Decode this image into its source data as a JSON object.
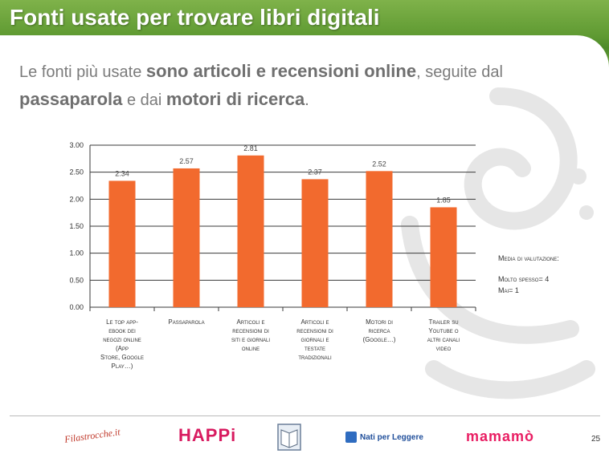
{
  "header": {
    "title": "Fonti usate per trovare libri digitali"
  },
  "subtitle": {
    "part1": "Le fonti più usate ",
    "bold1": "sono articoli e recensioni online",
    "part2": ", seguite dal ",
    "bold2": "passaparola",
    "part3": " e dai ",
    "bold3": "motori di ricerca",
    "part4": "."
  },
  "chart_data": {
    "type": "bar",
    "categories": [
      "Le top app-ebook dei negozi online (App Store, Google Play…)",
      "Passaparola",
      "Articoli e recensioni di siti e giornali online",
      "Articoli e recensioni di giornali e testate tradizionali",
      "Motori di ricerca (Google…)",
      "Trailer su Youtube o altri canali video"
    ],
    "values": [
      2.34,
      2.57,
      2.81,
      2.37,
      2.52,
      1.85
    ],
    "value_labels": [
      "2.34",
      "2.57",
      "2.81",
      "2.37",
      "2.52",
      "1.85"
    ],
    "ylim": [
      0,
      3
    ],
    "yticks": [
      "0.00",
      "0.50",
      "1.00",
      "1.50",
      "2.00",
      "2.50",
      "3.00"
    ],
    "ytick_values": [
      0,
      0.5,
      1,
      1.5,
      2,
      2.5,
      3
    ],
    "bar_color": "#f26a2e",
    "grid": true
  },
  "category_labels": [
    [
      "Le top app-",
      "ebook dei",
      "negozi online",
      "(App",
      "Store, Google",
      "Play…)"
    ],
    [
      "Passaparola"
    ],
    [
      "Articoli e",
      "recensioni di",
      "siti e giornali",
      "online"
    ],
    [
      "Articoli e",
      "recensioni di",
      "giornali e",
      "testate",
      "tradizionali"
    ],
    [
      "Motori di",
      "ricerca",
      "(Google…)"
    ],
    [
      "Trailer su",
      "Youtube o",
      "altri canali",
      "video"
    ]
  ],
  "side_note": {
    "line1": "Media di valutazione:",
    "line2": "Molto spesso= 4",
    "line3": "Mai= 1"
  },
  "footer": {
    "logos": [
      "Filastrocche.it",
      "HAPPi",
      "Nati per Leggere",
      "mamamò"
    ],
    "page_number": "25"
  },
  "colors": {
    "header_green": "#5f9a32",
    "bar": "#f26a2e"
  }
}
